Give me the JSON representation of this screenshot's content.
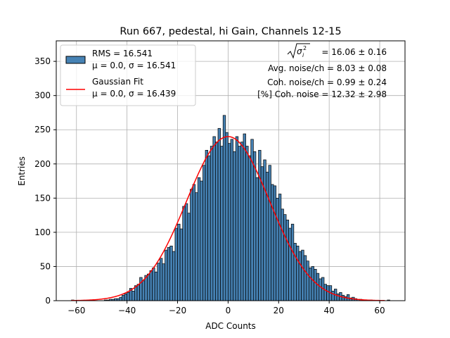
{
  "chart_data": {
    "type": "bar",
    "title": "Run 667, pedestal, hi Gain, Channels 12-15",
    "xlabel": "ADC Counts",
    "ylabel": "Entries",
    "xlim": [
      -68,
      70
    ],
    "ylim": [
      0,
      380
    ],
    "xticks": [
      -60,
      -40,
      -20,
      0,
      20,
      40,
      60
    ],
    "yticks": [
      0,
      50,
      100,
      150,
      200,
      250,
      300,
      350
    ],
    "xtick_labels": [
      "−60",
      "−40",
      "−20",
      "0",
      "20",
      "40",
      "60"
    ],
    "ytick_labels": [
      "0",
      "50",
      "100",
      "150",
      "200",
      "250",
      "300",
      "350"
    ],
    "grid": true,
    "legend_placement": "top-left",
    "legend": [
      {
        "label_line1": "RMS = 16.541",
        "label_line2": "μ = 0.0, σ = 16.541",
        "type": "histogram",
        "color": "#4682b4"
      },
      {
        "label_line1": "Gaussian Fit",
        "label_line2": "μ = 0.0, σ = 16.439",
        "type": "line",
        "color": "#ff0000"
      }
    ],
    "annotations": {
      "sqrt_value": " = 16.06 ± 0.16",
      "line2": "Avg. noise/ch = 8.03 ± 0.08",
      "line3": "Coh. noise/ch = 0.99 ± 0.24",
      "line4": "[%] Coh. noise = 12.32 ± 2.98"
    },
    "histogram": {
      "bin_start": -62,
      "bin_width": 1,
      "fill_color": "#4682b4",
      "edge_color": "#000000",
      "counts": [
        1,
        0,
        0,
        0,
        0,
        0,
        0,
        0,
        0,
        0,
        0,
        0,
        0,
        1,
        1,
        2,
        2,
        3,
        3,
        5,
        8,
        10,
        12,
        18,
        14,
        22,
        24,
        34,
        29,
        37,
        39,
        44,
        48,
        42,
        55,
        62,
        54,
        74,
        78,
        80,
        72,
        106,
        112,
        105,
        138,
        142,
        128,
        163,
        170,
        158,
        180,
        175,
        198,
        220,
        212,
        226,
        240,
        232,
        252,
        226,
        271,
        246,
        230,
        236,
        218,
        240,
        226,
        232,
        244,
        226,
        212,
        236,
        218,
        180,
        220,
        196,
        206,
        188,
        198,
        170,
        168,
        150,
        156,
        134,
        126,
        118,
        106,
        112,
        84,
        80,
        72,
        74,
        66,
        58,
        48,
        50,
        46,
        40,
        32,
        34,
        24,
        22,
        22,
        14,
        17,
        10,
        12,
        8,
        6,
        9,
        4,
        5,
        3,
        2,
        2,
        1,
        1,
        0,
        1,
        0,
        0,
        0,
        0,
        0,
        0,
        1
      ]
    },
    "gaussian_fit": {
      "mu": 0.0,
      "sigma": 16.439,
      "amplitude": 240,
      "x_range": [
        -62,
        62
      ],
      "color": "#ff0000"
    }
  }
}
